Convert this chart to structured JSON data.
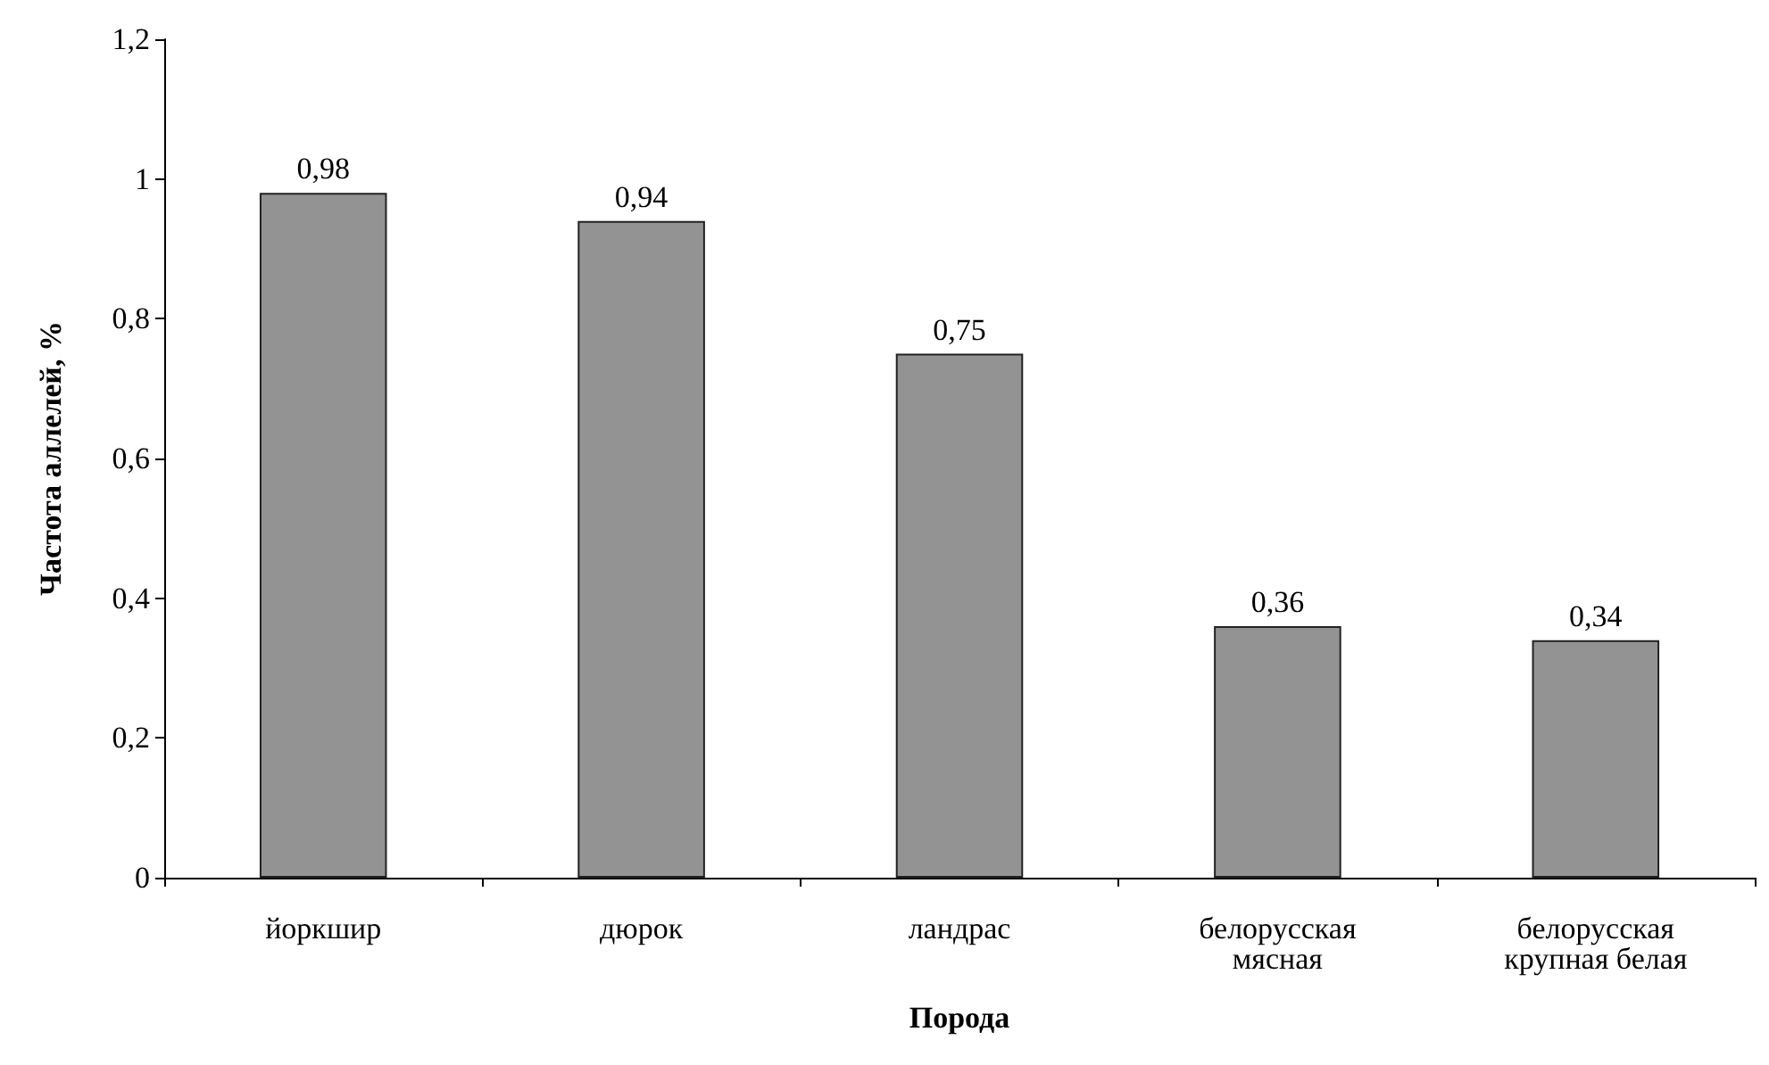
{
  "chart_data": {
    "type": "bar",
    "xlabel": "Порода",
    "ylabel": "Частота аллелей, %",
    "categories": [
      "йоркшир",
      "дюрок",
      "ландрас",
      "белорусская\nмясная",
      "белорусская\nкрупная белая"
    ],
    "values": [
      0.98,
      0.94,
      0.75,
      0.36,
      0.34
    ],
    "value_labels": [
      "0,98",
      "0,94",
      "0,75",
      "0,36",
      "0,34"
    ],
    "color": "#939393",
    "ylim": [
      0,
      1.2
    ],
    "yticks": [
      0,
      {
        "value": 0.2,
        "label": "0,2"
      },
      {
        "value": 0.4,
        "label": "0,4"
      },
      {
        "value": 0.6,
        "label": "0,6"
      },
      {
        "value": 0.8,
        "label": "0,8"
      },
      1,
      {
        "value": 1.2,
        "label": "1,2"
      }
    ],
    "grid": false
  }
}
